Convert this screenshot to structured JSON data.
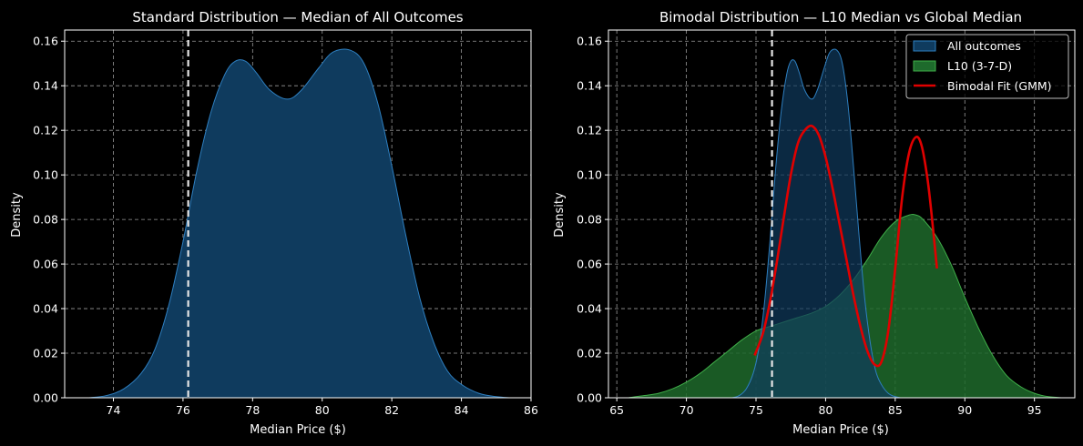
{
  "colors": {
    "background": "#000000",
    "axis": "#ffffff",
    "grid": "#9a9a9a",
    "all_outcomes_fill": "#0f3b5e",
    "all_outcomes_line": "#2e7fc0",
    "l10_fill": "#1e6a2c",
    "l10_line": "#3fae49",
    "gmm": "#e00000",
    "median_line": "#e6e6e6"
  },
  "chart_data": [
    {
      "type": "area",
      "title": "Standard Distribution — Median of All Outcomes",
      "xlabel": "Median Price ($)",
      "ylabel": "Density",
      "xlim": [
        72.6,
        86.0
      ],
      "ylim": [
        0,
        0.165
      ],
      "xticks": [
        74,
        76,
        78,
        80,
        82,
        84,
        86
      ],
      "xtick_labels": [
        "74",
        "76",
        "78",
        "80",
        "82",
        "84",
        "86"
      ],
      "yticks": [
        0,
        0.02,
        0.04,
        0.06,
        0.08,
        0.1,
        0.12,
        0.14,
        0.16
      ],
      "ytick_labels": [
        "0.00",
        "0.02",
        "0.04",
        "0.06",
        "0.08",
        "0.10",
        "0.12",
        "0.14",
        "0.16"
      ],
      "grid": true,
      "median_line_x": 76.15,
      "series": [
        {
          "x": [
            73.3,
            73.8,
            74.3,
            74.8,
            75.2,
            75.6,
            76.0,
            76.4,
            76.8,
            77.2,
            77.5,
            77.8,
            78.1,
            78.5,
            79.0,
            79.4,
            79.9,
            80.3,
            80.8,
            81.2,
            81.6,
            82.0,
            82.4,
            82.8,
            83.2,
            83.6,
            84.0,
            84.5,
            85.0,
            85.4
          ],
          "y": [
            0.0,
            0.001,
            0.004,
            0.011,
            0.022,
            0.042,
            0.07,
            0.102,
            0.128,
            0.145,
            0.151,
            0.151,
            0.146,
            0.138,
            0.134,
            0.138,
            0.148,
            0.155,
            0.156,
            0.15,
            0.132,
            0.104,
            0.073,
            0.045,
            0.025,
            0.012,
            0.006,
            0.002,
            0.0005,
            0.0
          ]
        }
      ]
    },
    {
      "type": "area",
      "title": "Bimodal Distribution — L10 Median vs Global Median",
      "xlabel": "Median Price ($)",
      "ylabel": "Density",
      "xlim": [
        64.4,
        97.9
      ],
      "ylim": [
        0,
        0.165
      ],
      "xticks": [
        65,
        70,
        75,
        80,
        85,
        90,
        95
      ],
      "xtick_labels": [
        "65",
        "70",
        "75",
        "80",
        "85",
        "90",
        "95"
      ],
      "yticks": [
        0,
        0.02,
        0.04,
        0.06,
        0.08,
        0.1,
        0.12,
        0.14,
        0.16
      ],
      "ytick_labels": [
        "0.00",
        "0.02",
        "0.04",
        "0.06",
        "0.08",
        "0.10",
        "0.12",
        "0.14",
        "0.16"
      ],
      "grid": true,
      "legend_position": "top-right",
      "median_line_x": 76.15,
      "series": [
        {
          "name": "All outcomes",
          "x": [
            73.3,
            73.8,
            74.3,
            74.8,
            75.2,
            75.6,
            76.0,
            76.4,
            76.8,
            77.2,
            77.5,
            77.8,
            78.1,
            78.5,
            79.0,
            79.4,
            79.9,
            80.3,
            80.8,
            81.2,
            81.6,
            82.0,
            82.4,
            82.8,
            83.2,
            83.6,
            84.0,
            84.5,
            85.0,
            85.4
          ],
          "y": [
            0.0,
            0.001,
            0.004,
            0.011,
            0.022,
            0.042,
            0.07,
            0.102,
            0.128,
            0.145,
            0.151,
            0.151,
            0.146,
            0.138,
            0.134,
            0.138,
            0.148,
            0.155,
            0.156,
            0.15,
            0.132,
            0.104,
            0.073,
            0.045,
            0.025,
            0.012,
            0.006,
            0.002,
            0.0005,
            0.0
          ]
        },
        {
          "name": "L10 (3-7-D)",
          "x": [
            65.8,
            67.0,
            68.0,
            69.0,
            70.0,
            71.0,
            72.0,
            73.0,
            74.0,
            75.0,
            76.0,
            77.0,
            78.0,
            79.0,
            80.0,
            81.0,
            82.0,
            83.0,
            84.0,
            85.0,
            86.0,
            86.5,
            87.0,
            88.0,
            89.0,
            90.0,
            91.0,
            92.0,
            93.0,
            94.0,
            95.0,
            96.0,
            97.0
          ],
          "y": [
            0.0,
            0.001,
            0.002,
            0.004,
            0.007,
            0.011,
            0.016,
            0.021,
            0.026,
            0.03,
            0.032,
            0.034,
            0.036,
            0.038,
            0.041,
            0.046,
            0.053,
            0.062,
            0.072,
            0.079,
            0.082,
            0.082,
            0.08,
            0.072,
            0.06,
            0.045,
            0.031,
            0.019,
            0.01,
            0.005,
            0.002,
            0.0005,
            0.0
          ]
        },
        {
          "name": "Bimodal Fit (GMM)",
          "x": [
            74.9,
            75.5,
            76.0,
            76.5,
            77.0,
            77.5,
            78.0,
            78.5,
            79.0,
            79.5,
            80.0,
            80.5,
            81.0,
            81.5,
            82.0,
            82.5,
            83.0,
            83.5,
            84.0,
            84.5,
            85.0,
            85.5,
            86.0,
            86.5,
            86.9,
            87.3,
            87.6,
            88.0
          ],
          "y": [
            0.019,
            0.029,
            0.043,
            0.061,
            0.081,
            0.1,
            0.114,
            0.12,
            0.122,
            0.118,
            0.108,
            0.094,
            0.078,
            0.062,
            0.046,
            0.032,
            0.021,
            0.015,
            0.016,
            0.03,
            0.058,
            0.09,
            0.11,
            0.117,
            0.113,
            0.099,
            0.083,
            0.058
          ]
        }
      ]
    }
  ]
}
